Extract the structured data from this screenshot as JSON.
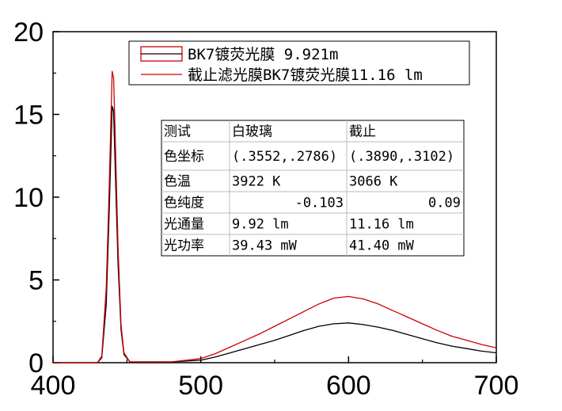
{
  "chart_data": {
    "type": "line",
    "title": "",
    "xlabel": "",
    "ylabel": "",
    "xlim": [
      400,
      700
    ],
    "ylim": [
      0,
      20
    ],
    "x_ticks": [
      "400",
      "500",
      "600",
      "700"
    ],
    "y_ticks": [
      "0",
      "5",
      "10",
      "15",
      "20"
    ],
    "grid": false,
    "legend_position": "top-right",
    "series": [
      {
        "name": "BK7镀荧光膜 9.921m",
        "color": "#000000",
        "points": [
          [
            400,
            0
          ],
          [
            430,
            0
          ],
          [
            433,
            0.3
          ],
          [
            436,
            3.5
          ],
          [
            438,
            9.0
          ],
          [
            440,
            15.5
          ],
          [
            441,
            15.2
          ],
          [
            442,
            12.0
          ],
          [
            444,
            6.0
          ],
          [
            446,
            2.0
          ],
          [
            448,
            0.5
          ],
          [
            452,
            0.05
          ],
          [
            480,
            0.05
          ],
          [
            500,
            0.15
          ],
          [
            510,
            0.35
          ],
          [
            520,
            0.6
          ],
          [
            530,
            0.85
          ],
          [
            540,
            1.1
          ],
          [
            550,
            1.35
          ],
          [
            560,
            1.65
          ],
          [
            570,
            1.95
          ],
          [
            580,
            2.2
          ],
          [
            590,
            2.35
          ],
          [
            600,
            2.4
          ],
          [
            610,
            2.3
          ],
          [
            620,
            2.15
          ],
          [
            630,
            1.95
          ],
          [
            640,
            1.7
          ],
          [
            650,
            1.45
          ],
          [
            660,
            1.2
          ],
          [
            670,
            1.0
          ],
          [
            680,
            0.85
          ],
          [
            690,
            0.7
          ],
          [
            700,
            0.6
          ]
        ]
      },
      {
        "name": "截止滤光膜BK7镀荧光膜11.16 lm",
        "color": "#cc0000",
        "points": [
          [
            400,
            0
          ],
          [
            430,
            0
          ],
          [
            433,
            0.4
          ],
          [
            436,
            4.5
          ],
          [
            438,
            10.5
          ],
          [
            440,
            17.6
          ],
          [
            441,
            17.2
          ],
          [
            442,
            14.0
          ],
          [
            444,
            7.0
          ],
          [
            446,
            2.3
          ],
          [
            448,
            0.6
          ],
          [
            452,
            0.05
          ],
          [
            480,
            0.05
          ],
          [
            500,
            0.25
          ],
          [
            510,
            0.55
          ],
          [
            520,
            0.95
          ],
          [
            530,
            1.35
          ],
          [
            540,
            1.75
          ],
          [
            550,
            2.2
          ],
          [
            560,
            2.65
          ],
          [
            570,
            3.1
          ],
          [
            580,
            3.55
          ],
          [
            590,
            3.9
          ],
          [
            600,
            4.0
          ],
          [
            610,
            3.85
          ],
          [
            620,
            3.55
          ],
          [
            630,
            3.15
          ],
          [
            640,
            2.75
          ],
          [
            650,
            2.35
          ],
          [
            660,
            1.95
          ],
          [
            670,
            1.6
          ],
          [
            680,
            1.35
          ],
          [
            690,
            1.1
          ],
          [
            700,
            0.9
          ]
        ]
      }
    ]
  },
  "table": {
    "rows": [
      [
        "测试",
        "白玻璃",
        "截止"
      ],
      [
        "色坐标",
        "(.3552,.2786)",
        "(.3890,.3102)"
      ],
      [
        "色温",
        "3922 K",
        "3066 K"
      ],
      [
        "色纯度",
        "-0.103",
        "0.09"
      ],
      [
        "光通量",
        "9.92 lm",
        "11.16 lm"
      ],
      [
        "光功率",
        "39.43 mW",
        "41.40 mW"
      ]
    ]
  }
}
